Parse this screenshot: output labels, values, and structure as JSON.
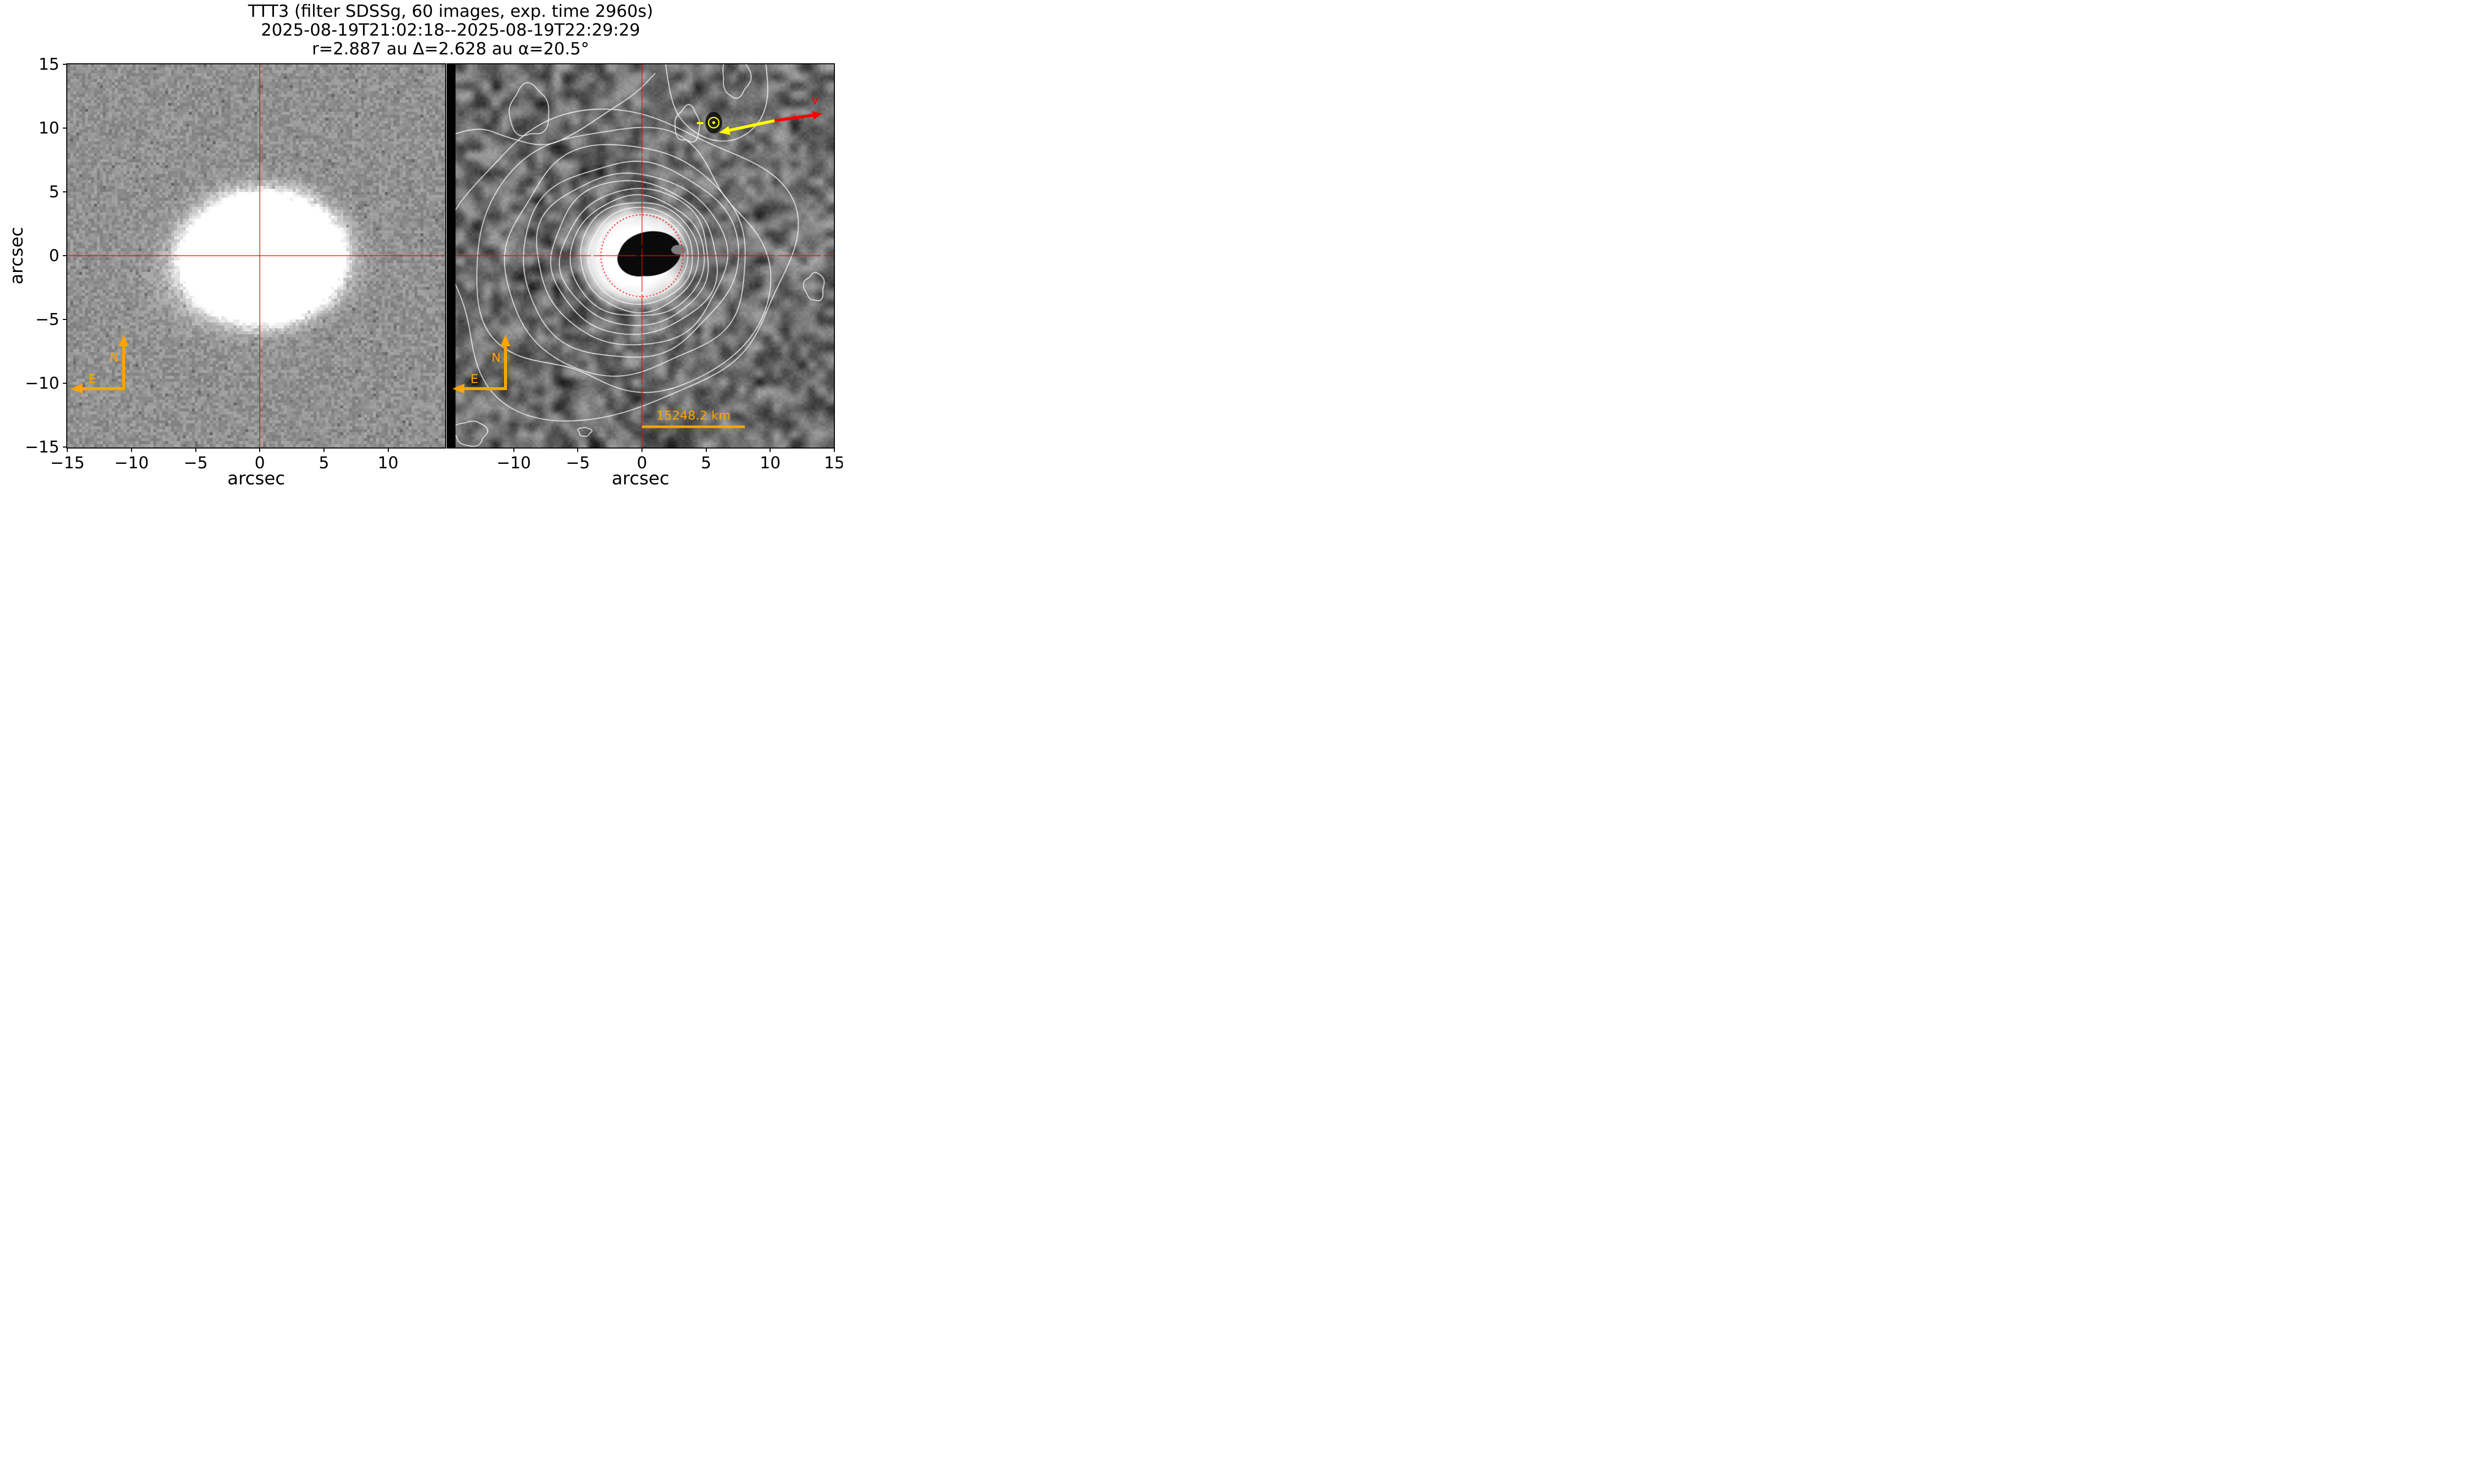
{
  "figure": {
    "title_lines": [
      "TTT3 (filter SDSSg, 60 images, exp. time 2960s)",
      "2025-08-19T21:02:18--2025-08-19T22:29:29",
      "r=2.887 au Δ=2.628 au α=20.5°"
    ]
  },
  "axes": {
    "ylabel": "arcsec",
    "y_tick_labels": [
      "15",
      "10",
      "5",
      "0",
      "−5",
      "−10",
      "−15"
    ],
    "y_tick_values": [
      15,
      10,
      5,
      0,
      -5,
      -10,
      -15
    ],
    "left_panel": {
      "xlabel": "arcsec",
      "x_tick_labels": [
        "−15",
        "−10",
        "−5",
        "0",
        "5",
        "10"
      ],
      "x_tick_values": [
        -15,
        -10,
        -5,
        0,
        5,
        10
      ]
    },
    "right_panel": {
      "xlabel": "arcsec",
      "x_tick_labels": [
        "−10",
        "−5",
        "0",
        "5",
        "10",
        "15"
      ],
      "x_tick_values": [
        -10,
        -5,
        0,
        5,
        10,
        15
      ]
    }
  },
  "annotations": {
    "compass": {
      "north_label": "N",
      "east_label": "E",
      "color": "#FFA500"
    },
    "scale_bar": {
      "label": "15248.2 km",
      "color": "#FFA500",
      "start_arcsec": 0,
      "end_arcsec": 8,
      "y_arcsec": -13.4
    },
    "velocity_arrow": {
      "label": "v",
      "color": "#FF0000",
      "from_arcsec": [
        10.4,
        10.6
      ],
      "to_arcsec": [
        14.1,
        11.1
      ]
    },
    "antisolar_arrow": {
      "label": "−☉",
      "color": "#FFFF00",
      "from_arcsec": [
        10.4,
        10.6
      ],
      "to_arcsec": [
        6.1,
        9.6
      ]
    },
    "sun_symbol": {
      "glyph": "☉",
      "color": "#FFFF00",
      "position_arcsec": [
        5.6,
        10.4
      ]
    },
    "aperture_circle": {
      "color": "#FF0000",
      "style": "dotted",
      "radius_arcsec": 3.2,
      "center_arcsec": [
        0,
        0
      ]
    },
    "crosshair": {
      "color": "#FF0000",
      "center_arcsec": [
        0,
        0
      ]
    }
  },
  "chart_data": [
    {
      "type": "heatmap",
      "panel": "left",
      "content": "direct co-added grayscale image of comet",
      "xlabel": "arcsec",
      "ylabel": "arcsec",
      "x_range": [
        -15,
        15
      ],
      "y_range": [
        -15,
        15
      ],
      "x_ticks": [
        -15,
        -10,
        -5,
        0,
        5,
        10
      ],
      "y_ticks": [
        15,
        10,
        5,
        0,
        -5,
        -10,
        -15
      ],
      "colormap": "gray",
      "features": {
        "background_sky": "speckled gray noise, mean gray ~0.57",
        "coma": "saturated white elliptical coma ~11 x 9 arcsec, center ~(+0.4, -0.1) arcsec, fuzzy speckled boundary with faint halo extending to ~8 arcsec toward SW",
        "crosshair": "solid red lines through (0,0)",
        "compass": "orange N (up) and E (left) arrows, corner near (-10.6, -10.4) arcsec"
      }
    },
    {
      "type": "heatmap",
      "panel": "right",
      "content": "enhanced / azimuthal-profile-divided image with isophote contours",
      "xlabel": "arcsec",
      "ylabel": "arcsec",
      "x_range": [
        -15,
        15
      ],
      "y_range": [
        -15,
        15
      ],
      "x_ticks": [
        -10,
        -5,
        0,
        5,
        10,
        15
      ],
      "y_ticks": [
        15,
        10,
        5,
        0,
        -5,
        -10,
        -15
      ],
      "colormap": "gray",
      "features": {
        "background_sky": "smoothed blobby noise, dark gray",
        "no_data_stripe": "black vertical stripe on left edge of panel",
        "core": "black kidney-shaped residual core spanning x -2.0..+3.2, y -1.6..+2.1 arcsec surrounded by saturated white annulus out to ~4.8 arcsec, dimmer on east side",
        "contours": "white isophote contours, approx radii arcsec [3.6,4.1,4.6,5.2,5.8,6.5,7.3,8.3,9.6,11.2,13.1], centers drifting west-southwest with radius, wobbly outer contours plus small closed loops over background blobs",
        "aperture_circle": "red dotted circle radius ~3.2 arcsec at (0,0)",
        "crosshair": "red dashed lines through (0,0)",
        "scale_bar": "orange bar from 0 to +8 arcsec at y=-13.4 labeled 15248.2 km",
        "sun_and_velocity": "yellow -☉ anti-solar arrow pointing lower-left toward sun symbol at (5.6,10.4); red velocity arrow labeled v pointing upper-right to (14.1,11.1)"
      }
    }
  ]
}
